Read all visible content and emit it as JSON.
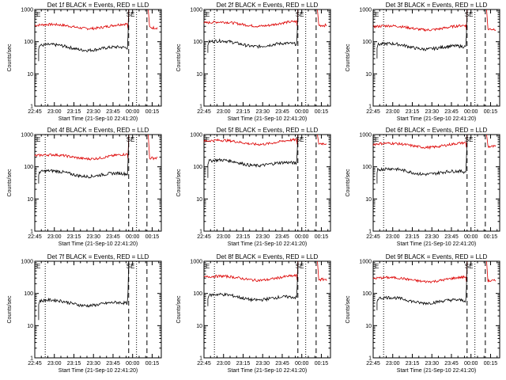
{
  "chart_data": {
    "type": "line",
    "layout": "3x3 grid",
    "x_ticks": [
      "22:45",
      "23:00",
      "23:15",
      "23:30",
      "23:45",
      "00:00",
      "00:15"
    ],
    "x_tick_minutes": [
      0,
      15,
      30,
      45,
      60,
      75,
      90
    ],
    "xlim_minutes": [
      0,
      97
    ],
    "xlabel": "Start Time (21-Sep-10 22:41:20)",
    "ylabel": "Counts/sec",
    "yscale": "log",
    "ylim": [
      1,
      1000
    ],
    "y_ticks": [
      "1",
      "10",
      "100",
      "1000"
    ],
    "legend_text": "BLACK = Events, RED = LLD",
    "vlines": [
      {
        "x": 8,
        "style": "dotted"
      },
      {
        "x": 72,
        "style": "dashed"
      },
      {
        "x": 78,
        "style": "dotted"
      },
      {
        "x": 86,
        "style": "dashed"
      }
    ],
    "markers": [
      "E",
      "SE"
    ],
    "panels": [
      {
        "title": "Det 1f BLACK = Events, RED = LLD",
        "det": "1f",
        "events_level": 65,
        "lld_level": 320,
        "events_start": 25,
        "events_gap_end": 60
      },
      {
        "title": "Det 2f BLACK = Events, RED = LLD",
        "det": "2f",
        "events_level": 85,
        "lld_level": 380,
        "events_start": 45,
        "events_gap_end": 65
      },
      {
        "title": "Det 3f BLACK = Events, RED = LLD",
        "det": "3f",
        "events_level": 70,
        "lld_level": 290,
        "events_start": 30,
        "events_gap_end": 70
      },
      {
        "title": "Det 4f BLACK = Events, RED = LLD",
        "det": "4f",
        "events_level": 60,
        "lld_level": 220,
        "events_start": 30,
        "events_gap_end": 80
      },
      {
        "title": "Det 5f BLACK = Events, RED = LLD",
        "det": "5f",
        "events_level": 130,
        "lld_level": 620,
        "events_start": 45,
        "events_gap_end": 70
      },
      {
        "title": "Det 6f BLACK = Events, RED = LLD",
        "det": "6f",
        "events_level": 70,
        "lld_level": 500,
        "events_start": 30,
        "events_gap_end": 120
      },
      {
        "title": "Det 7f BLACK = Events, RED = LLD",
        "det": "7f",
        "events_level": 50,
        "lld_level": null,
        "events_start": 15,
        "events_gap_end": 80
      },
      {
        "title": "Det 8f BLACK = Events, RED = LLD",
        "det": "8f",
        "events_level": 75,
        "lld_level": 320,
        "events_start": 40,
        "events_gap_end": 75
      },
      {
        "title": "Det 9f BLACK = Events, RED = LLD",
        "det": "9f",
        "events_level": 60,
        "lld_level": 290,
        "events_start": 30,
        "events_gap_end": 85
      }
    ],
    "colors": {
      "events": "#000000",
      "lld": "#dd0000"
    }
  }
}
